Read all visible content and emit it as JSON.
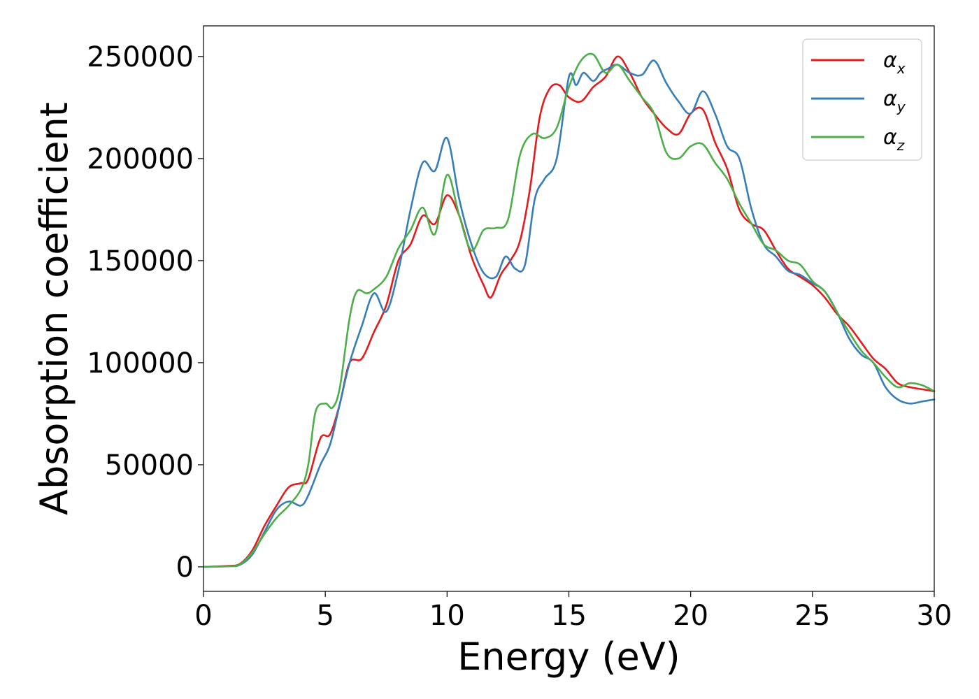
{
  "chart_data": {
    "type": "line",
    "xlabel": "Energy (eV)",
    "ylabel": "Absorption coefficient",
    "xlim": [
      0,
      30
    ],
    "ylim": [
      -12000,
      265000
    ],
    "xticks": [
      "0",
      "5",
      "10",
      "15",
      "20",
      "25",
      "30"
    ],
    "yticks": [
      "0",
      "50000",
      "100000",
      "150000",
      "200000",
      "250000"
    ],
    "grid": false,
    "legend_position": "top-right",
    "series": [
      {
        "name": "α_x",
        "legend_base": "α",
        "legend_sub": "x",
        "color": "#e41a1c",
        "x": [
          0,
          1,
          1.5,
          2,
          2.5,
          3,
          3.5,
          4,
          4.3,
          4.8,
          5.2,
          5.6,
          6,
          6.5,
          7,
          7.5,
          8,
          8.5,
          9,
          9.5,
          10,
          10.5,
          11,
          11.5,
          11.8,
          12.2,
          12.6,
          13,
          13.4,
          13.8,
          14.2,
          14.6,
          15,
          15.5,
          16,
          16.5,
          17,
          17.5,
          18,
          18.5,
          19,
          19.5,
          20,
          20.5,
          21,
          21.5,
          22,
          22.5,
          23,
          23.5,
          24,
          24.5,
          25,
          25.5,
          26,
          26.5,
          27,
          27.5,
          28,
          28.5,
          29,
          29.5,
          30
        ],
        "values": [
          0,
          500,
          1500,
          8000,
          20000,
          30000,
          39000,
          41000,
          43000,
          63000,
          65000,
          80000,
          100000,
          102000,
          115000,
          128000,
          150000,
          158000,
          172000,
          168000,
          182000,
          172000,
          152000,
          138000,
          132000,
          143000,
          150000,
          160000,
          185000,
          220000,
          234000,
          236000,
          230000,
          228000,
          235000,
          240000,
          250000,
          242000,
          230000,
          222000,
          215000,
          212000,
          222000,
          224000,
          208000,
          195000,
          175000,
          168000,
          165000,
          155000,
          146000,
          142000,
          138000,
          132000,
          124000,
          118000,
          110000,
          102000,
          97000,
          90000,
          88000,
          87000,
          86000
        ]
      },
      {
        "name": "α_y",
        "legend_base": "α",
        "legend_sub": "y",
        "color": "#377eb8",
        "x": [
          0,
          1,
          1.5,
          2,
          2.5,
          3,
          3.5,
          4,
          4.3,
          4.8,
          5.2,
          5.6,
          6,
          6.5,
          7,
          7.5,
          8,
          8.5,
          9,
          9.5,
          10,
          10.5,
          11,
          11.5,
          12,
          12.4,
          12.8,
          13.2,
          13.6,
          14,
          14.5,
          15,
          15.3,
          15.6,
          16,
          16.3,
          16.6,
          17,
          17.5,
          18,
          18.5,
          19,
          19.5,
          20,
          20.5,
          21,
          21.5,
          22,
          22.5,
          23,
          23.5,
          24,
          24.5,
          25,
          25.5,
          26,
          26.5,
          27,
          27.5,
          28,
          28.5,
          29,
          29.5,
          30
        ],
        "values": [
          0,
          300,
          1000,
          6000,
          17000,
          28000,
          32000,
          30000,
          35000,
          50000,
          60000,
          80000,
          100000,
          118000,
          134000,
          125000,
          145000,
          175000,
          198000,
          194000,
          210000,
          180000,
          158000,
          144000,
          142000,
          152000,
          146000,
          148000,
          180000,
          190000,
          200000,
          240000,
          236000,
          242000,
          238000,
          242000,
          244000,
          246000,
          242000,
          241000,
          248000,
          237000,
          228000,
          222000,
          233000,
          222000,
          206000,
          200000,
          175000,
          158000,
          152000,
          145000,
          143000,
          139000,
          135000,
          125000,
          112000,
          104000,
          100000,
          88000,
          82000,
          80000,
          81000,
          82000
        ]
      },
      {
        "name": "α_z",
        "legend_base": "α",
        "legend_sub": "z",
        "color": "#4daf4a",
        "x": [
          0,
          1,
          1.5,
          2,
          2.5,
          3,
          3.5,
          4,
          4.3,
          4.6,
          5,
          5.3,
          5.6,
          6,
          6.3,
          6.7,
          7,
          7.5,
          8,
          8.5,
          9,
          9.5,
          10,
          10.5,
          11,
          11.5,
          12,
          12.5,
          13,
          13.5,
          14,
          14.5,
          15,
          15.5,
          16,
          16.5,
          17,
          17.5,
          18,
          18.5,
          19,
          19.5,
          20,
          20.5,
          21,
          21.5,
          22,
          22.5,
          23,
          23.5,
          24,
          24.5,
          25,
          25.5,
          26,
          26.5,
          27,
          27.5,
          28,
          28.5,
          29,
          29.5,
          30
        ],
        "values": [
          0,
          300,
          1200,
          7000,
          16000,
          24000,
          30000,
          38000,
          50000,
          76000,
          80000,
          78000,
          88000,
          122000,
          135000,
          134000,
          136000,
          142000,
          156000,
          165000,
          176000,
          163000,
          192000,
          172000,
          155000,
          165000,
          166000,
          170000,
          202000,
          212000,
          210000,
          215000,
          235000,
          248000,
          251000,
          242000,
          246000,
          238000,
          230000,
          222000,
          203000,
          200000,
          206000,
          207000,
          198000,
          190000,
          178000,
          168000,
          158000,
          155000,
          150000,
          148000,
          140000,
          135000,
          125000,
          115000,
          106000,
          100000,
          93000,
          88000,
          90000,
          89000,
          86000
        ]
      }
    ]
  }
}
